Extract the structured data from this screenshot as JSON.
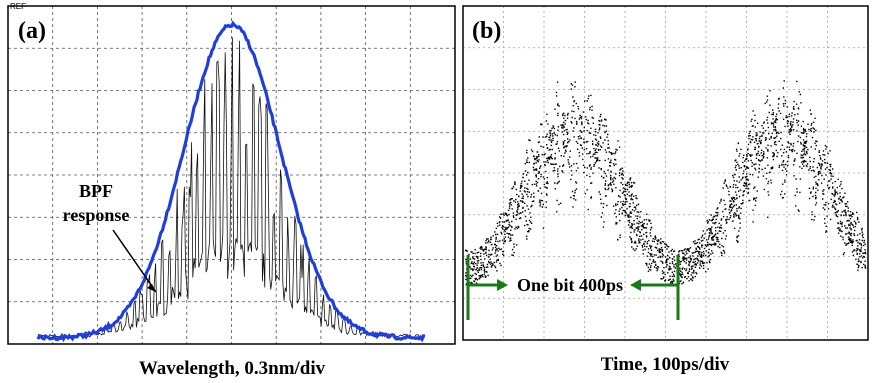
{
  "panel_a": {
    "label": "(a)",
    "ref": "REF",
    "annotation_line1": "BPF",
    "annotation_line2": "response",
    "caption": "Wavelength, 0.3nm/div"
  },
  "panel_b": {
    "label": "(b)",
    "annotation": "One bit 400ps",
    "caption": "Time, 100ps/div"
  }
}
